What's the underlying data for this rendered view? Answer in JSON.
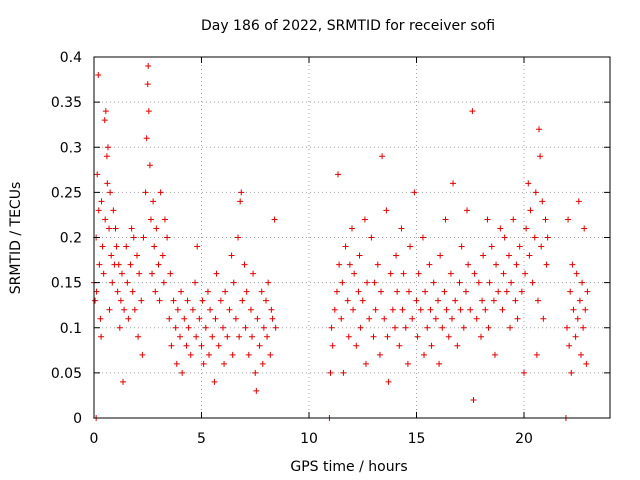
{
  "chart_data": {
    "type": "scatter",
    "title": "Day 186 of 2022, SRMTID for receiver sofi",
    "xlabel": "GPS time / hours",
    "ylabel": "SRMTID / TECUs",
    "xlim": [
      0,
      24
    ],
    "ylim": [
      0,
      0.4
    ],
    "x_ticks": [
      {
        "v": 0,
        "label": "0"
      },
      {
        "v": 5,
        "label": "5"
      },
      {
        "v": 10,
        "label": "10"
      },
      {
        "v": 15,
        "label": "15"
      },
      {
        "v": 20,
        "label": "20"
      }
    ],
    "y_ticks": [
      {
        "v": 0,
        "label": "0"
      },
      {
        "v": 0.05,
        "label": "0.05"
      },
      {
        "v": 0.1,
        "label": "0.1"
      },
      {
        "v": 0.15,
        "label": "0.15"
      },
      {
        "v": 0.2,
        "label": "0.2"
      },
      {
        "v": 0.25,
        "label": "0.25"
      },
      {
        "v": 0.3,
        "label": "0.3"
      },
      {
        "v": 0.35,
        "label": "0.35"
      },
      {
        "v": 0.4,
        "label": "0.4"
      }
    ],
    "grid": true,
    "marker": "+",
    "color": "#e00000",
    "series": [
      {
        "points": [
          [
            0.0,
            0.15
          ],
          [
            0.05,
            0.13
          ],
          [
            0.1,
            0.2
          ],
          [
            0.12,
            0.14
          ],
          [
            0.15,
            0.27
          ],
          [
            0.2,
            0.38
          ],
          [
            0.22,
            0.23
          ],
          [
            0.25,
            0.17
          ],
          [
            0.3,
            0.11
          ],
          [
            0.33,
            0.09
          ],
          [
            0.35,
            0.24
          ],
          [
            0.4,
            0.19
          ],
          [
            0.45,
            0.16
          ],
          [
            0.5,
            0.33
          ],
          [
            0.52,
            0.22
          ],
          [
            0.55,
            0.34
          ],
          [
            0.6,
            0.29
          ],
          [
            0.62,
            0.26
          ],
          [
            0.65,
            0.3
          ],
          [
            0.7,
            0.21
          ],
          [
            0.72,
            0.12
          ],
          [
            0.75,
            0.25
          ],
          [
            0.8,
            0.18
          ],
          [
            0.85,
            0.15
          ],
          [
            0.9,
            0.23
          ],
          [
            0.95,
            0.17
          ],
          [
            1.0,
            0.21
          ],
          [
            1.05,
            0.19
          ],
          [
            1.1,
            0.14
          ],
          [
            1.15,
            0.17
          ],
          [
            1.2,
            0.1
          ],
          [
            1.25,
            0.13
          ],
          [
            1.3,
            0.16
          ],
          [
            1.35,
            0.04
          ],
          [
            1.4,
            0.12
          ],
          [
            1.5,
            0.19
          ],
          [
            1.55,
            0.15
          ],
          [
            1.6,
            0.11
          ],
          [
            1.7,
            0.17
          ],
          [
            1.75,
            0.21
          ],
          [
            1.8,
            0.14
          ],
          [
            1.85,
            0.2
          ],
          [
            1.9,
            0.12
          ],
          [
            2.0,
            0.18
          ],
          [
            2.05,
            0.09
          ],
          [
            2.1,
            0.16
          ],
          [
            2.2,
            0.13
          ],
          [
            2.25,
            0.07
          ],
          [
            2.3,
            0.2
          ],
          [
            2.4,
            0.25
          ],
          [
            2.45,
            0.31
          ],
          [
            2.5,
            0.37
          ],
          [
            2.52,
            0.39
          ],
          [
            2.55,
            0.34
          ],
          [
            2.6,
            0.28
          ],
          [
            2.65,
            0.22
          ],
          [
            2.7,
            0.16
          ],
          [
            2.75,
            0.24
          ],
          [
            2.8,
            0.19
          ],
          [
            2.85,
            0.14
          ],
          [
            2.9,
            0.21
          ],
          [
            3.0,
            0.17
          ],
          [
            3.05,
            0.13
          ],
          [
            3.1,
            0.25
          ],
          [
            3.2,
            0.18
          ],
          [
            3.25,
            0.15
          ],
          [
            3.3,
            0.22
          ],
          [
            3.4,
            0.2
          ],
          [
            3.5,
            0.11
          ],
          [
            3.55,
            0.16
          ],
          [
            3.6,
            0.08
          ],
          [
            3.7,
            0.13
          ],
          [
            3.8,
            0.1
          ],
          [
            3.85,
            0.06
          ],
          [
            3.9,
            0.12
          ],
          [
            4.0,
            0.09
          ],
          [
            4.05,
            0.14
          ],
          [
            4.1,
            0.05
          ],
          [
            4.2,
            0.11
          ],
          [
            4.3,
            0.08
          ],
          [
            4.35,
            0.13
          ],
          [
            4.4,
            0.1
          ],
          [
            4.5,
            0.07
          ],
          [
            4.6,
            0.12
          ],
          [
            4.7,
            0.15
          ],
          [
            4.75,
            0.09
          ],
          [
            4.8,
            0.19
          ],
          [
            4.9,
            0.11
          ],
          [
            5.0,
            0.08
          ],
          [
            5.05,
            0.13
          ],
          [
            5.1,
            0.06
          ],
          [
            5.2,
            0.1
          ],
          [
            5.3,
            0.14
          ],
          [
            5.35,
            0.07
          ],
          [
            5.4,
            0.12
          ],
          [
            5.5,
            0.09
          ],
          [
            5.6,
            0.04
          ],
          [
            5.65,
            0.11
          ],
          [
            5.7,
            0.16
          ],
          [
            5.8,
            0.08
          ],
          [
            5.9,
            0.13
          ],
          [
            6.0,
            0.1
          ],
          [
            6.05,
            0.06
          ],
          [
            6.1,
            0.14
          ],
          [
            6.2,
            0.09
          ],
          [
            6.3,
            0.12
          ],
          [
            6.4,
            0.18
          ],
          [
            6.45,
            0.07
          ],
          [
            6.5,
            0.15
          ],
          [
            6.6,
            0.11
          ],
          [
            6.7,
            0.2
          ],
          [
            6.75,
            0.09
          ],
          [
            6.8,
            0.24
          ],
          [
            6.85,
            0.25
          ],
          [
            6.9,
            0.13
          ],
          [
            7.0,
            0.17
          ],
          [
            7.05,
            0.1
          ],
          [
            7.1,
            0.14
          ],
          [
            7.2,
            0.07
          ],
          [
            7.3,
            0.12
          ],
          [
            7.35,
            0.09
          ],
          [
            7.4,
            0.16
          ],
          [
            7.5,
            0.05
          ],
          [
            7.55,
            0.03
          ],
          [
            7.6,
            0.11
          ],
          [
            7.7,
            0.08
          ],
          [
            7.8,
            0.14
          ],
          [
            7.85,
            0.06
          ],
          [
            7.9,
            0.1
          ],
          [
            8.0,
            0.13
          ],
          [
            8.05,
            0.09
          ],
          [
            8.1,
            0.15
          ],
          [
            8.2,
            0.07
          ],
          [
            8.25,
            0.12
          ],
          [
            8.3,
            0.11
          ],
          [
            8.4,
            0.22
          ],
          [
            8.45,
            0.1
          ],
          [
            11.0,
            0.05
          ],
          [
            11.05,
            0.1
          ],
          [
            11.1,
            0.08
          ],
          [
            11.2,
            0.12
          ],
          [
            11.3,
            0.14
          ],
          [
            11.35,
            0.27
          ],
          [
            11.4,
            0.17
          ],
          [
            11.5,
            0.11
          ],
          [
            11.55,
            0.15
          ],
          [
            11.6,
            0.05
          ],
          [
            11.7,
            0.19
          ],
          [
            11.8,
            0.13
          ],
          [
            11.85,
            0.09
          ],
          [
            11.9,
            0.17
          ],
          [
            12.0,
            0.21
          ],
          [
            12.05,
            0.12
          ],
          [
            12.1,
            0.16
          ],
          [
            12.2,
            0.08
          ],
          [
            12.3,
            0.14
          ],
          [
            12.35,
            0.18
          ],
          [
            12.4,
            0.1
          ],
          [
            12.5,
            0.13
          ],
          [
            12.6,
            0.22
          ],
          [
            12.65,
            0.06
          ],
          [
            12.7,
            0.15
          ],
          [
            12.8,
            0.11
          ],
          [
            12.9,
            0.2
          ],
          [
            13.0,
            0.09
          ],
          [
            13.05,
            0.15
          ],
          [
            13.1,
            0.12
          ],
          [
            13.2,
            0.17
          ],
          [
            13.3,
            0.07
          ],
          [
            13.35,
            0.14
          ],
          [
            13.4,
            0.29
          ],
          [
            13.5,
            0.11
          ],
          [
            13.6,
            0.23
          ],
          [
            13.65,
            0.09
          ],
          [
            13.7,
            0.04
          ],
          [
            13.8,
            0.16
          ],
          [
            13.9,
            0.12
          ],
          [
            14.0,
            0.1
          ],
          [
            14.05,
            0.18
          ],
          [
            14.1,
            0.14
          ],
          [
            14.2,
            0.08
          ],
          [
            14.3,
            0.21
          ],
          [
            14.35,
            0.12
          ],
          [
            14.4,
            0.16
          ],
          [
            14.5,
            0.1
          ],
          [
            14.6,
            0.06
          ],
          [
            14.65,
            0.14
          ],
          [
            14.7,
            0.19
          ],
          [
            14.8,
            0.11
          ],
          [
            14.9,
            0.25
          ],
          [
            15.0,
            0.13
          ],
          [
            15.05,
            0.09
          ],
          [
            15.1,
            0.16
          ],
          [
            15.2,
            0.12
          ],
          [
            15.3,
            0.2
          ],
          [
            15.35,
            0.07
          ],
          [
            15.4,
            0.14
          ],
          [
            15.5,
            0.1
          ],
          [
            15.6,
            0.17
          ],
          [
            15.65,
            0.12
          ],
          [
            15.7,
            0.08
          ],
          [
            15.8,
            0.15
          ],
          [
            15.9,
            0.11
          ],
          [
            16.0,
            0.13
          ],
          [
            16.05,
            0.06
          ],
          [
            16.1,
            0.18
          ],
          [
            16.2,
            0.1
          ],
          [
            16.3,
            0.14
          ],
          [
            16.35,
            0.22
          ],
          [
            16.4,
            0.12
          ],
          [
            16.5,
            0.09
          ],
          [
            16.6,
            0.16
          ],
          [
            16.65,
            0.11
          ],
          [
            16.7,
            0.26
          ],
          [
            16.8,
            0.13
          ],
          [
            16.9,
            0.08
          ],
          [
            17.0,
            0.15
          ],
          [
            17.05,
            0.12
          ],
          [
            17.1,
            0.19
          ],
          [
            17.2,
            0.1
          ],
          [
            17.3,
            0.14
          ],
          [
            17.35,
            0.23
          ],
          [
            17.4,
            0.17
          ],
          [
            17.5,
            0.12
          ],
          [
            17.6,
            0.34
          ],
          [
            17.65,
            0.02
          ],
          [
            17.7,
            0.16
          ],
          [
            17.8,
            0.11
          ],
          [
            17.9,
            0.15
          ],
          [
            18.0,
            0.09
          ],
          [
            18.05,
            0.13
          ],
          [
            18.1,
            0.18
          ],
          [
            18.2,
            0.12
          ],
          [
            18.3,
            0.22
          ],
          [
            18.35,
            0.1
          ],
          [
            18.4,
            0.15
          ],
          [
            18.5,
            0.19
          ],
          [
            18.6,
            0.13
          ],
          [
            18.65,
            0.07
          ],
          [
            18.7,
            0.17
          ],
          [
            18.8,
            0.14
          ],
          [
            18.9,
            0.21
          ],
          [
            19.0,
            0.12
          ],
          [
            19.05,
            0.16
          ],
          [
            19.1,
            0.2
          ],
          [
            19.2,
            0.14
          ],
          [
            19.3,
            0.18
          ],
          [
            19.35,
            0.1
          ],
          [
            19.4,
            0.15
          ],
          [
            19.5,
            0.22
          ],
          [
            19.6,
            0.13
          ],
          [
            19.65,
            0.17
          ],
          [
            19.7,
            0.11
          ],
          [
            19.8,
            0.19
          ],
          [
            19.9,
            0.14
          ],
          [
            20.0,
            0.05
          ],
          [
            20.05,
            0.16
          ],
          [
            20.1,
            0.21
          ],
          [
            20.2,
            0.26
          ],
          [
            20.25,
            0.18
          ],
          [
            20.3,
            0.23
          ],
          [
            20.4,
            0.15
          ],
          [
            20.5,
            0.2
          ],
          [
            20.55,
            0.25
          ],
          [
            20.6,
            0.07
          ],
          [
            20.65,
            0.13
          ],
          [
            20.7,
            0.32
          ],
          [
            20.75,
            0.29
          ],
          [
            20.8,
            0.19
          ],
          [
            20.85,
            0.24
          ],
          [
            20.9,
            0.11
          ],
          [
            21.0,
            0.22
          ],
          [
            21.05,
            0.17
          ],
          [
            21.1,
            0.2
          ],
          [
            22.0,
            0.1
          ],
          [
            22.05,
            0.22
          ],
          [
            22.1,
            0.08
          ],
          [
            22.15,
            0.14
          ],
          [
            22.2,
            0.05
          ],
          [
            22.25,
            0.17
          ],
          [
            22.3,
            0.12
          ],
          [
            22.4,
            0.09
          ],
          [
            22.45,
            0.16
          ],
          [
            22.5,
            0.11
          ],
          [
            22.55,
            0.24
          ],
          [
            22.6,
            0.13
          ],
          [
            22.65,
            0.07
          ],
          [
            22.7,
            0.15
          ],
          [
            22.75,
            0.1
          ],
          [
            22.8,
            0.21
          ],
          [
            22.85,
            0.12
          ],
          [
            22.9,
            0.06
          ],
          [
            22.95,
            0.14
          ]
        ]
      },
      {
        "points": [
          [
            0.1,
            0.0
          ],
          [
            10.95,
            0.0
          ],
          [
            21.95,
            0.0
          ]
        ]
      }
    ]
  }
}
